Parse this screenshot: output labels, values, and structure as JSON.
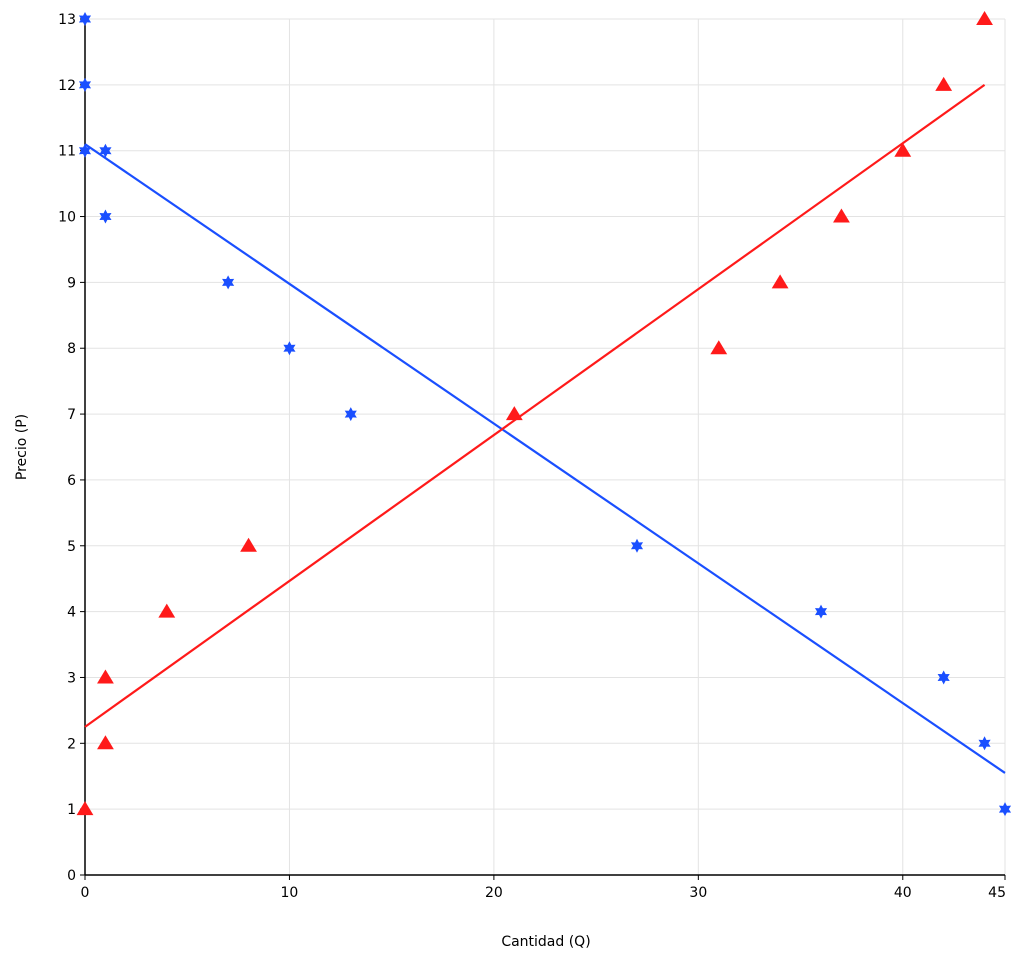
{
  "chart_data": {
    "type": "scatter",
    "title": "",
    "xlabel": "Cantidad (Q)",
    "ylabel": "Precio (P)",
    "xlim": [
      0,
      45
    ],
    "ylim": [
      0,
      13
    ],
    "grid": true,
    "x_ticks": [
      0,
      10,
      20,
      30,
      40,
      45
    ],
    "y_ticks": [
      0,
      1,
      2,
      3,
      4,
      5,
      6,
      7,
      8,
      9,
      10,
      11,
      12,
      13
    ],
    "series": [
      {
        "marker": "star",
        "color": "#1a4fff",
        "points": [
          [
            0,
            13
          ],
          [
            0,
            12
          ],
          [
            0,
            11
          ],
          [
            1,
            11
          ],
          [
            1,
            10
          ],
          [
            7,
            9
          ],
          [
            10,
            8
          ],
          [
            13,
            7
          ],
          [
            27,
            5
          ],
          [
            36,
            4
          ],
          [
            42,
            3
          ],
          [
            44,
            2
          ],
          [
            45,
            1
          ]
        ]
      },
      {
        "marker": "triangle",
        "color": "#ff1a1a",
        "points": [
          [
            0,
            1
          ],
          [
            1,
            2
          ],
          [
            1,
            3
          ],
          [
            4,
            4
          ],
          [
            8,
            5
          ],
          [
            21,
            7
          ],
          [
            31,
            8
          ],
          [
            34,
            9
          ],
          [
            37,
            10
          ],
          [
            40,
            11
          ],
          [
            42,
            12
          ],
          [
            44,
            13
          ]
        ]
      }
    ],
    "trend_lines": [
      {
        "color": "#1a4fff",
        "from": [
          0,
          11.1
        ],
        "to": [
          45,
          1.55
        ]
      },
      {
        "color": "#ff1a1a",
        "from": [
          0,
          2.25
        ],
        "to": [
          44,
          12
        ]
      }
    ]
  }
}
